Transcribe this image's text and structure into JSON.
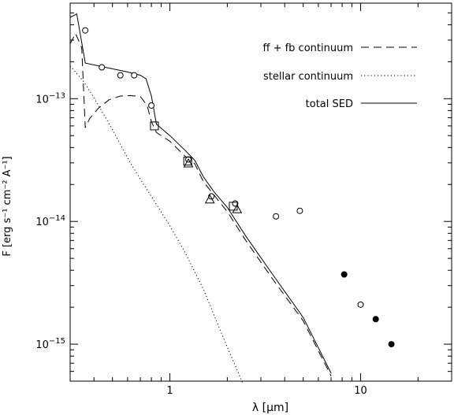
{
  "chart_data": {
    "type": "line",
    "xscale": "log",
    "yscale": "log",
    "xlim": [
      0.3,
      30
    ],
    "ylim": [
      5e-16,
      6e-13
    ],
    "xlabel": "λ [μm]",
    "ylabel": "F [erg s⁻¹ cm⁻² A⁻¹]",
    "x_ticks": [
      {
        "value": 1,
        "label": "1"
      },
      {
        "value": 10,
        "label": "10"
      }
    ],
    "y_ticks": [
      {
        "value": 1e-15,
        "label_base": "10",
        "label_exp": "−15"
      },
      {
        "value": 1e-14,
        "label_base": "10",
        "label_exp": "−14"
      },
      {
        "value": 1e-13,
        "label_base": "10",
        "label_exp": "−13"
      }
    ],
    "legend_position": "top-right",
    "series": [
      {
        "name": "ff + fb continuum",
        "style": "dashed",
        "x": [
          0.3,
          0.32,
          0.345,
          0.36,
          0.38,
          0.42,
          0.48,
          0.55,
          0.62,
          0.7,
          0.76,
          0.8,
          0.85,
          1.0,
          1.2,
          1.35,
          1.5,
          1.7,
          2.0,
          2.5,
          3.5,
          5.0,
          7.0
        ],
        "y": [
          2.8e-13,
          3.4e-13,
          2.6e-13,
          5.8e-14,
          6.9e-14,
          8.3e-14,
          9.8e-14,
          1.05e-13,
          1.06e-13,
          1.04e-13,
          8.8e-14,
          6.5e-14,
          5.3e-14,
          4.5e-14,
          3.4e-14,
          2.95e-14,
          2.1e-14,
          1.65e-14,
          1.2e-14,
          7e-15,
          3.3e-15,
          1.55e-15,
          5.5e-16
        ]
      },
      {
        "name": "stellar continuum",
        "style": "dotted",
        "x": [
          0.3,
          0.35,
          0.4,
          0.5,
          0.6,
          0.7,
          0.8,
          1.0,
          1.2,
          1.5,
          1.8,
          2.1,
          2.4
        ],
        "y": [
          1.85e-13,
          1.4e-13,
          1.02e-13,
          5.6e-14,
          3.3e-14,
          2.2e-14,
          1.6e-14,
          9.2e-15,
          5.6e-15,
          2.8e-15,
          1.4e-15,
          7.9e-16,
          4.9e-16
        ]
      },
      {
        "name": "total SED",
        "style": "solid",
        "x": [
          0.3,
          0.325,
          0.36,
          0.5,
          0.6,
          0.7,
          0.75,
          0.8,
          0.85,
          1.0,
          1.2,
          1.35,
          1.5,
          1.7,
          2.0,
          2.5,
          3.5,
          5.0,
          7.0
        ],
        "y": [
          4.6e-13,
          4.9e-13,
          1.95e-13,
          1.75e-13,
          1.65e-13,
          1.55e-13,
          1.45e-13,
          1.05e-13,
          6.2e-14,
          5e-14,
          3.8e-14,
          3.15e-14,
          2.3e-14,
          1.75e-14,
          1.3e-14,
          7.6e-15,
          3.6e-15,
          1.65e-15,
          5.8e-16
        ]
      }
    ],
    "points": {
      "open_circles": [
        {
          "x": 0.36,
          "y": 3.6e-13
        },
        {
          "x": 0.44,
          "y": 1.8e-13
        },
        {
          "x": 0.55,
          "y": 1.55e-13
        },
        {
          "x": 0.65,
          "y": 1.55e-13
        },
        {
          "x": 0.8,
          "y": 8.8e-14
        },
        {
          "x": 1.25,
          "y": 3.2e-14
        },
        {
          "x": 1.65,
          "y": 1.6e-14
        },
        {
          "x": 2.2,
          "y": 1.4e-14
        },
        {
          "x": 3.6,
          "y": 1.1e-14
        },
        {
          "x": 4.8,
          "y": 1.22e-14
        },
        {
          "x": 10.0,
          "y": 2.1e-15
        }
      ],
      "open_squares": [
        {
          "x": 0.83,
          "y": 6e-14
        },
        {
          "x": 1.24,
          "y": 3.1e-14
        },
        {
          "x": 2.15,
          "y": 1.33e-14
        }
      ],
      "open_triangles": [
        {
          "x": 1.25,
          "y": 2.95e-14
        },
        {
          "x": 1.62,
          "y": 1.5e-14
        },
        {
          "x": 2.25,
          "y": 1.25e-14
        }
      ],
      "filled_circles": [
        {
          "x": 8.2,
          "y": 3.7e-15
        },
        {
          "x": 12.0,
          "y": 1.6e-15
        },
        {
          "x": 14.5,
          "y": 1e-15
        }
      ]
    }
  }
}
